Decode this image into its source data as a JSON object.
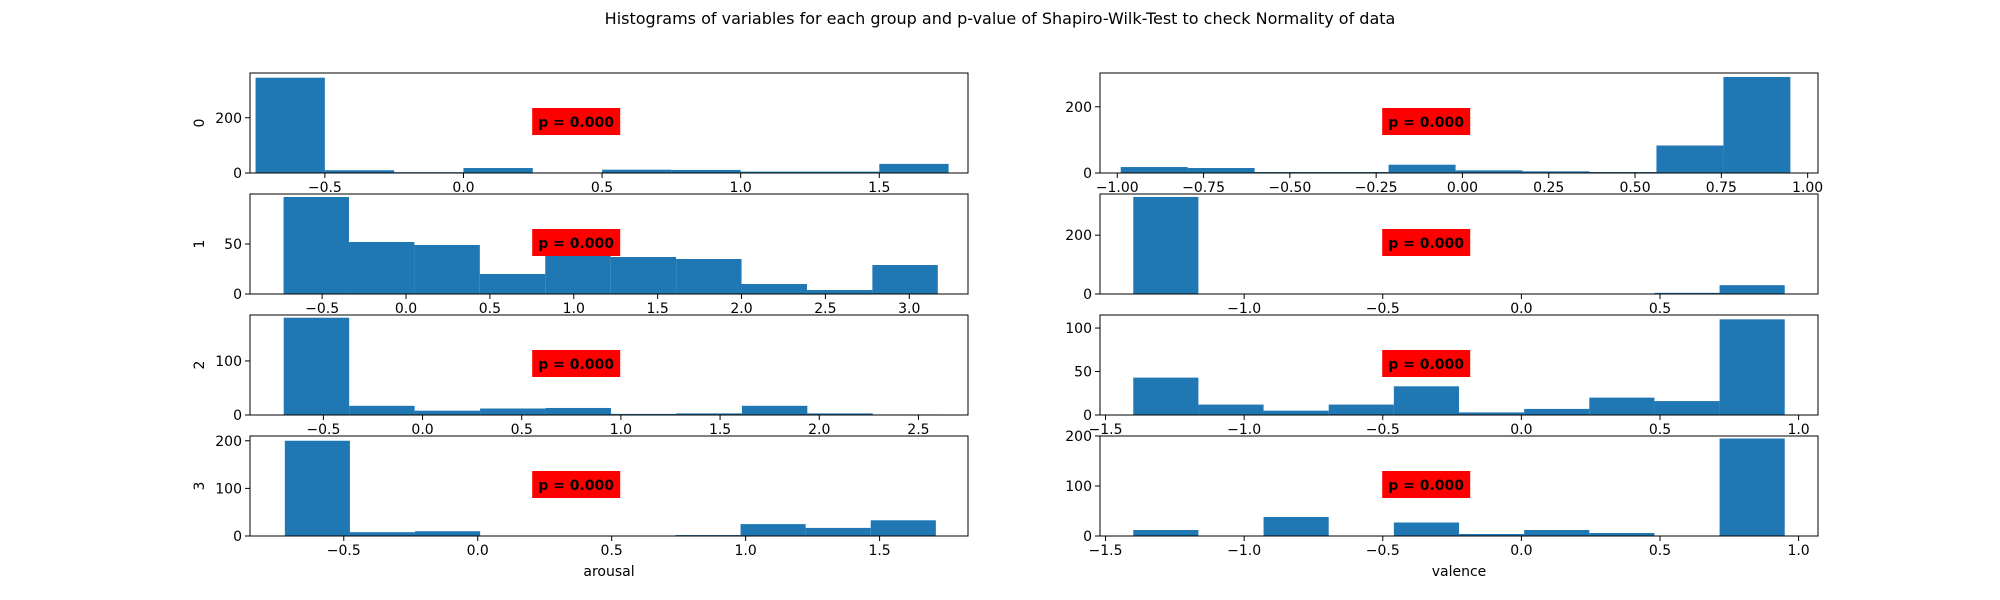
{
  "figure": {
    "title": "Histograms of variables for each group and p-value of Shapiro-Wilk-Test to check Normality of data",
    "colors": {
      "bar": "#1f77b4",
      "pvalue_box": "#ff0000",
      "axes": "#000000",
      "background": "#ffffff"
    }
  },
  "chart_data": [
    {
      "type": "bar",
      "group": "0",
      "variable": "arousal",
      "ylabel": "0",
      "xlabel": "",
      "annotation": "p = 0.000",
      "xlim": [
        -0.77,
        1.82
      ],
      "ylim": [
        0,
        362
      ],
      "x_ticks": [
        -0.5,
        0.0,
        0.5,
        1.0,
        1.5
      ],
      "x_tick_labels": [
        "−0.5",
        "0.0",
        "0.5",
        "1.0",
        "1.5"
      ],
      "y_ticks": [
        0,
        200
      ],
      "y_tick_labels": [
        "0",
        "200"
      ],
      "bin_edges": [
        -0.75,
        -0.5,
        -0.25,
        0.0,
        0.25,
        0.5,
        0.75,
        1.0,
        1.25,
        1.5,
        1.75
      ],
      "values": [
        345,
        10,
        3,
        18,
        2,
        12,
        11,
        5,
        5,
        33
      ]
    },
    {
      "type": "bar",
      "group": "0",
      "variable": "valence",
      "ylabel": "",
      "xlabel": "",
      "annotation": "p = 0.000",
      "xlim": [
        -1.05,
        1.03
      ],
      "ylim": [
        0,
        302
      ],
      "x_ticks": [
        -1.0,
        -0.75,
        -0.5,
        -0.25,
        0.0,
        0.25,
        0.5,
        0.75,
        1.0
      ],
      "x_tick_labels": [
        "−1.00",
        "−0.75",
        "−0.50",
        "−0.25",
        "0.00",
        "0.25",
        "0.50",
        "0.75",
        "1.00"
      ],
      "y_ticks": [
        0,
        200
      ],
      "y_tick_labels": [
        "0",
        "200"
      ],
      "bin_edges": [
        -0.99,
        -0.796,
        -0.602,
        -0.408,
        -0.214,
        -0.02,
        0.174,
        0.368,
        0.562,
        0.756,
        0.95
      ],
      "values": [
        18,
        15,
        3,
        3,
        25,
        8,
        5,
        3,
        83,
        290
      ]
    },
    {
      "type": "bar",
      "group": "1",
      "variable": "arousal",
      "ylabel": "1",
      "xlabel": "",
      "annotation": "p = 0.000",
      "xlim": [
        -0.93,
        3.35
      ],
      "ylim": [
        0,
        100
      ],
      "x_ticks": [
        -0.5,
        0.0,
        0.5,
        1.0,
        1.5,
        2.0,
        2.5,
        3.0
      ],
      "x_tick_labels": [
        "−0.5",
        "0.0",
        "0.5",
        "1.0",
        "1.5",
        "2.0",
        "2.5",
        "3.0"
      ],
      "y_ticks": [
        0,
        50
      ],
      "y_tick_labels": [
        "0",
        "50"
      ],
      "bin_edges": [
        -0.73,
        -0.34,
        0.05,
        0.44,
        0.83,
        1.22,
        1.61,
        2.0,
        2.39,
        2.78,
        3.17
      ],
      "values": [
        97,
        52,
        49,
        20,
        48,
        37,
        35,
        10,
        4,
        29
      ]
    },
    {
      "type": "bar",
      "group": "1",
      "variable": "valence",
      "ylabel": "",
      "xlabel": "",
      "annotation": "p = 0.000",
      "xlim": [
        -1.52,
        1.07
      ],
      "ylim": [
        0,
        340
      ],
      "x_ticks": [
        -1.0,
        -0.5,
        0.0,
        0.5
      ],
      "x_tick_labels": [
        "−1.0",
        "−0.5",
        "0.0",
        "0.5"
      ],
      "y_ticks": [
        0,
        200
      ],
      "y_tick_labels": [
        "0",
        "200"
      ],
      "bin_edges": [
        -1.4,
        -1.165,
        -0.93,
        -0.695,
        -0.46,
        -0.225,
        0.01,
        0.245,
        0.48,
        0.715,
        0.95
      ],
      "values": [
        330,
        0,
        0,
        0,
        0,
        0,
        0,
        0,
        4,
        30
      ]
    },
    {
      "type": "bar",
      "group": "2",
      "variable": "arousal",
      "ylabel": "2",
      "xlabel": "",
      "annotation": "p = 0.000",
      "xlim": [
        -0.87,
        2.75
      ],
      "ylim": [
        0,
        185
      ],
      "x_ticks": [
        -0.5,
        0.0,
        0.5,
        1.0,
        1.5,
        2.0,
        2.5
      ],
      "x_tick_labels": [
        "−0.5",
        "0.0",
        "0.5",
        "1.0",
        "1.5",
        "2.0",
        "2.5"
      ],
      "y_ticks": [
        0,
        100
      ],
      "y_tick_labels": [
        "0",
        "100"
      ],
      "bin_edges": [
        -0.7,
        -0.37,
        -0.04,
        0.29,
        0.62,
        0.95,
        1.28,
        1.61,
        1.94,
        2.27,
        2.6
      ],
      "values": [
        180,
        17,
        8,
        12,
        13,
        2,
        3,
        17,
        3,
        1
      ]
    },
    {
      "type": "bar",
      "group": "2",
      "variable": "valence",
      "ylabel": "",
      "xlabel": "",
      "annotation": "p = 0.000",
      "xlim": [
        -1.52,
        1.07
      ],
      "ylim": [
        0,
        115
      ],
      "x_ticks": [
        -1.5,
        -1.0,
        -0.5,
        0.0,
        0.5,
        1.0
      ],
      "x_tick_labels": [
        "−1.5",
        "−1.0",
        "−0.5",
        "0.0",
        "0.5",
        "1.0"
      ],
      "y_ticks": [
        0,
        50,
        100
      ],
      "y_tick_labels": [
        "0",
        "50",
        "100"
      ],
      "bin_edges": [
        -1.4,
        -1.165,
        -0.93,
        -0.695,
        -0.46,
        -0.225,
        0.01,
        0.245,
        0.48,
        0.715,
        0.95
      ],
      "values": [
        43,
        12,
        5,
        12,
        33,
        3,
        7,
        20,
        16,
        110
      ]
    },
    {
      "type": "bar",
      "group": "3",
      "variable": "arousal",
      "ylabel": "3",
      "xlabel": "arousal",
      "annotation": "p = 0.000",
      "xlim": [
        -0.85,
        1.83
      ],
      "ylim": [
        0,
        210
      ],
      "x_ticks": [
        -0.5,
        0.0,
        0.5,
        1.0,
        1.5
      ],
      "x_tick_labels": [
        "−0.5",
        "0.0",
        "0.5",
        "1.0",
        "1.5"
      ],
      "y_ticks": [
        0,
        100,
        200
      ],
      "y_tick_labels": [
        "0",
        "100",
        "200"
      ],
      "bin_edges": [
        -0.72,
        -0.477,
        -0.234,
        0.009,
        0.252,
        0.495,
        0.738,
        0.981,
        1.224,
        1.467,
        1.71
      ],
      "values": [
        200,
        8,
        10,
        0,
        0,
        0,
        2,
        25,
        17,
        33
      ]
    },
    {
      "type": "bar",
      "group": "3",
      "variable": "valence",
      "ylabel": "",
      "xlabel": "valence",
      "annotation": "p = 0.000",
      "xlim": [
        -1.52,
        1.07
      ],
      "ylim": [
        0,
        200
      ],
      "x_ticks": [
        -1.5,
        -1.0,
        -0.5,
        0.0,
        0.5,
        1.0
      ],
      "x_tick_labels": [
        "−1.5",
        "−1.0",
        "−0.5",
        "0.0",
        "0.5",
        "1.0"
      ],
      "y_ticks": [
        0,
        100,
        200
      ],
      "y_tick_labels": [
        "0",
        "100",
        "200"
      ],
      "bin_edges": [
        -1.4,
        -1.165,
        -0.93,
        -0.695,
        -0.46,
        -0.225,
        0.01,
        0.245,
        0.48,
        0.715,
        0.95
      ],
      "values": [
        12,
        0,
        38,
        0,
        27,
        4,
        12,
        6,
        0,
        195
      ]
    }
  ]
}
